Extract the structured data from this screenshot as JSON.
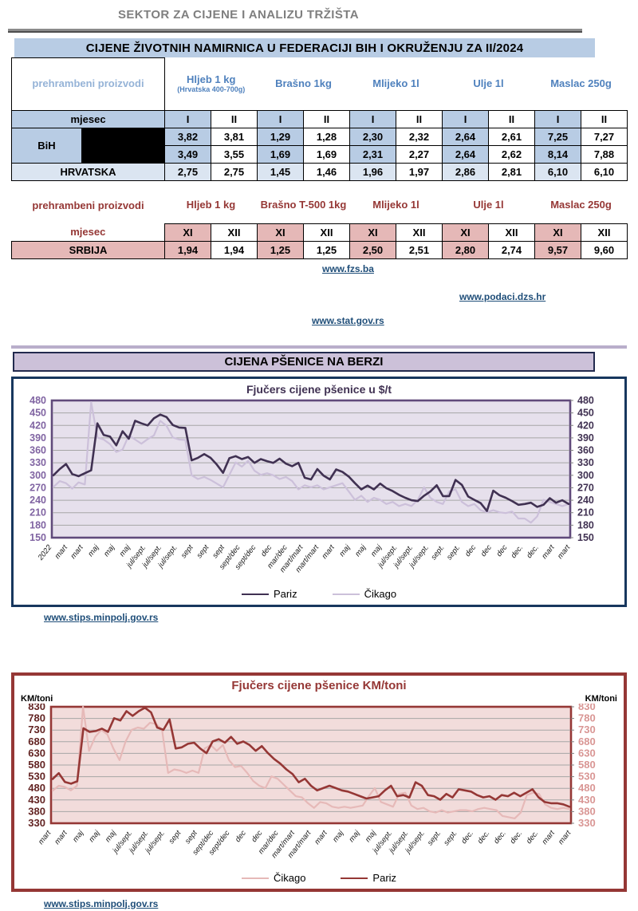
{
  "page": {
    "title": "SEKTOR ZA CIJENE I ANALIZU TRŽIŠTA",
    "subtitle": "CIJENE ŽIVOTNIH NAMIRNICA U FEDERACIJI BIH I OKRUŽENJU ZA  II/2024"
  },
  "colors": {
    "blue_cell": "#b8cce4",
    "blue_text": "#4f81bd",
    "corner_text": "#95b3d7",
    "hrv_cell": "#dbe5f1",
    "red_text": "#953735",
    "pink_cell": "#e5b8b7",
    "link": "#1f4e79",
    "section_bar": "#ccc1d9",
    "chart1_border": "#17375e",
    "chart2_border": "#953735"
  },
  "table_bih": {
    "corner_label": "prehrambeni proizvodi",
    "month_label": "mjesec",
    "products": [
      {
        "name": "Hljeb 1 kg",
        "note": "(Hrvatska 400-700g)"
      },
      {
        "name": "Brašno 1kg",
        "note": ""
      },
      {
        "name": "Mlijeko 1l",
        "note": ""
      },
      {
        "name": "Ulje 1l",
        "note": ""
      },
      {
        "name": "Maslac 250g",
        "note": ""
      }
    ],
    "months": [
      "I",
      "II"
    ],
    "rows": [
      {
        "label": "BiH",
        "values": [
          "3,82",
          "3,81",
          "1,29",
          "1,28",
          "2,30",
          "2,32",
          "2,64",
          "2,61",
          "7,25",
          "7,27"
        ]
      },
      {
        "label": "",
        "values": [
          "3,49",
          "3,55",
          "1,69",
          "1,69",
          "2,31",
          "2,27",
          "2,64",
          "2,62",
          "8,14",
          "7,88"
        ]
      },
      {
        "label": "HRVATSKA",
        "values": [
          "2,75",
          "2,75",
          "1,45",
          "1,46",
          "1,96",
          "1,97",
          "2,86",
          "2,81",
          "6,10",
          "6,10"
        ]
      }
    ]
  },
  "table_srb": {
    "corner_label": "prehrambeni proizvodi",
    "month_label": "mjesec",
    "products": [
      "Hljeb 1 kg",
      "Brašno T-500 1kg",
      "Mlijeko  1l",
      "Ulje 1l",
      "Maslac 250g"
    ],
    "months": [
      "XI",
      "XII"
    ],
    "rows": [
      {
        "label": "SRBIJA",
        "values": [
          "1,94",
          "1,94",
          "1,25",
          "1,25",
          "2,50",
          "2,51",
          "2,80",
          "2,74",
          "9,57",
          "9,60"
        ]
      }
    ]
  },
  "sources": {
    "fzs": "www.fzs.ba",
    "dzs": "www.podaci.dzs.hr",
    "stat_rs": "www.stat.gov.rs",
    "stips_usd": "www.stips.minpolj.gov.rs",
    "stips_km": "www.stips.minpolj.gov.rs"
  },
  "section2_title": "CIJENA PŠENICE NA BERZI",
  "chart_data": [
    {
      "type": "line",
      "title": "Fjučers cijene pšenice u $/t",
      "ylabel": "",
      "ylim": [
        150,
        480
      ],
      "ytick_step": 30,
      "grid": true,
      "legend_position": "bottom",
      "plot_bg": "#e6e0ec",
      "plot_border": "#604a7b",
      "axis_colors": [
        "#8064a2",
        "#403152"
      ],
      "x_labels": [
        "2022",
        "mart",
        "mart",
        "maj",
        "maj",
        "maj",
        "jul/sept.",
        "jul/sept.",
        "jul/sept.",
        "sept",
        "sept",
        "sept",
        "sept/dec",
        "sept/dec",
        "dec",
        "mar/dec",
        "mart/mart",
        "mart/mart",
        "mart",
        "maj",
        "maj",
        "maj",
        "jul/sept.",
        "jul/sept.",
        "jul/sept.",
        "sept.",
        "sept.",
        "dec",
        "dec",
        "dec",
        "dec.",
        "dec.",
        "mart",
        "mart"
      ],
      "draw_order": [
        1,
        0
      ],
      "series": [
        {
          "name": "Pariz",
          "color": "#403152",
          "width": 2.6,
          "values": [
            300,
            315,
            327,
            303,
            298,
            305,
            312,
            425,
            397,
            393,
            372,
            406,
            388,
            431,
            425,
            420,
            437,
            446,
            440,
            421,
            415,
            414,
            336,
            342,
            351,
            342,
            326,
            306,
            341,
            346,
            339,
            344,
            330,
            339,
            334,
            330,
            340,
            328,
            322,
            330,
            294,
            290,
            315,
            299,
            290,
            314,
            308,
            297,
            281,
            266,
            275,
            266,
            280,
            269,
            262,
            253,
            246,
            240,
            238,
            251,
            261,
            276,
            250,
            250,
            289,
            277,
            249,
            241,
            233,
            214,
            263,
            252,
            246,
            238,
            229,
            231,
            234,
            224,
            229,
            245,
            234,
            240,
            231
          ]
        },
        {
          "name": "Čikago",
          "color": "#ccc0da",
          "width": 2.2,
          "values": [
            272,
            286,
            281,
            268,
            283,
            278,
            476,
            391,
            386,
            375,
            356,
            362,
            396,
            386,
            376,
            387,
            396,
            431,
            419,
            391,
            386,
            385,
            300,
            291,
            296,
            289,
            280,
            271,
            301,
            331,
            321,
            335,
            311,
            301,
            305,
            300,
            291,
            296,
            286,
            266,
            276,
            271,
            276,
            266,
            271,
            276,
            281,
            261,
            241,
            251,
            236,
            246,
            241,
            231,
            236,
            226,
            231,
            226,
            241,
            271,
            246,
            236,
            231,
            261,
            266,
            236,
            226,
            231,
            216,
            211,
            216,
            211,
            209,
            213,
            196,
            196,
            186,
            201,
            241,
            236,
            231,
            226,
            231
          ]
        }
      ]
    },
    {
      "type": "line",
      "title": "Fjučers cijene pšenice KM/toni",
      "ylabel": "KM/toni",
      "ylim": [
        330,
        830
      ],
      "ytick_step": 50,
      "grid": true,
      "legend_position": "bottom",
      "plot_bg": "#f2dcdb",
      "plot_border": "#953735",
      "axis_colors": [
        "#632423",
        "#d99694"
      ],
      "x_labels": [
        "mart",
        "mart",
        "maj",
        "maj",
        "maj",
        "jul/sept.",
        "jul/sept.",
        "jul/sept.",
        "sept",
        "sept",
        "sept/dec",
        "sept/dec",
        "dec",
        "dec",
        "mar/dec",
        "mart/mart",
        "mart/mart",
        "mart",
        "maj",
        "maj",
        "maj",
        "jul/sept.",
        "jul/sept.",
        "jul/sept.",
        "sept.",
        "sept.",
        "dec.",
        "dec.",
        "dec.",
        "dec.",
        "dec.",
        "mart",
        "mart"
      ],
      "draw_order": [
        0,
        1
      ],
      "series": [
        {
          "name": "Čikago",
          "color": "#e6b9b8",
          "width": 2.2,
          "values": [
            470,
            491,
            486,
            471,
            491,
            830,
            641,
            701,
            731,
            711,
            651,
            601,
            681,
            731,
            741,
            736,
            761,
            756,
            731,
            546,
            561,
            556,
            546,
            556,
            546,
            651,
            666,
            641,
            666,
            601,
            571,
            576,
            546,
            511,
            491,
            481,
            531,
            521,
            496,
            471,
            446,
            441,
            416,
            396,
            421,
            416,
            401,
            396,
            401,
            396,
            401,
            406,
            446,
            481,
            421,
            411,
            401,
            456,
            461,
            406,
            391,
            396,
            381,
            376,
            386,
            376,
            381,
            386,
            386,
            381,
            391,
            396,
            391,
            386,
            361,
            356,
            351,
            376,
            451,
            461,
            456,
            411,
            396,
            391,
            396,
            391
          ]
        },
        {
          "name": "Pariz",
          "color": "#953735",
          "width": 2.6,
          "values": [
            520,
            545,
            507,
            500,
            510,
            738,
            722,
            726,
            736,
            722,
            781,
            771,
            811,
            791,
            811,
            826,
            806,
            741,
            731,
            776,
            651,
            656,
            671,
            676,
            651,
            631,
            681,
            691,
            676,
            701,
            671,
            681,
            666,
            641,
            661,
            631,
            606,
            586,
            561,
            541,
            506,
            521,
            491,
            471,
            481,
            491,
            481,
            471,
            466,
            456,
            446,
            436,
            441,
            446,
            471,
            491,
            446,
            451,
            441,
            506,
            491,
            451,
            446,
            431,
            456,
            441,
            476,
            471,
            466,
            451,
            441,
            446,
            431,
            451,
            446,
            461,
            446,
            461,
            476,
            441,
            421,
            416,
            416,
            411,
            401
          ]
        }
      ]
    }
  ]
}
